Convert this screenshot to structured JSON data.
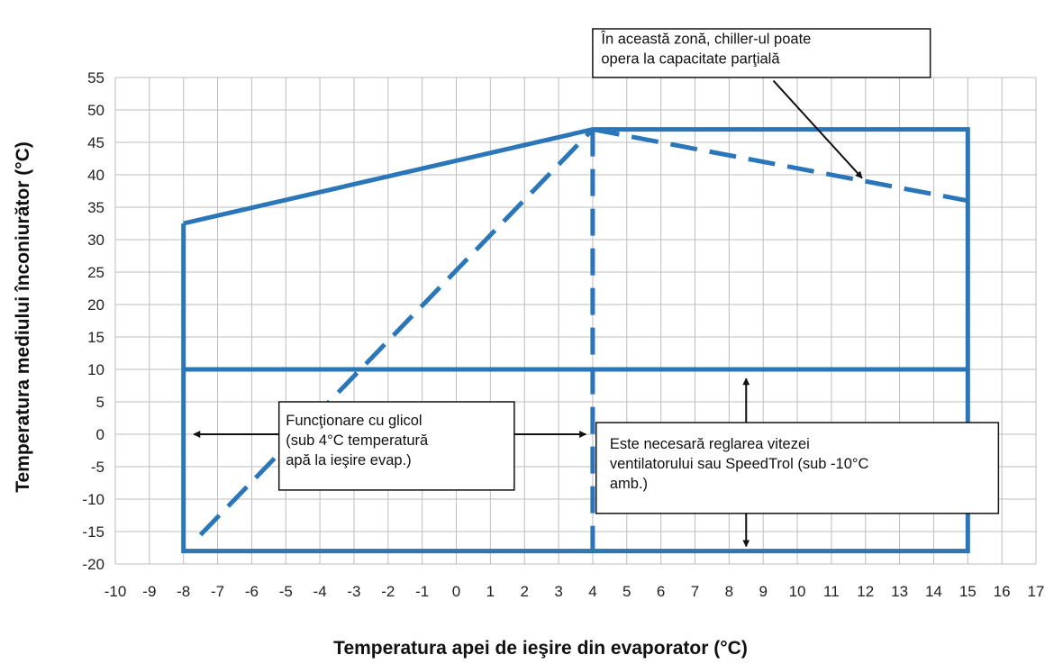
{
  "chart_data": {
    "type": "line",
    "xlabel": "Temperatura apei de ieşire din evaporator (°C)",
    "ylabel": "Temperatura mediului înconiurător (°C)",
    "xlim": [
      -10,
      17
    ],
    "ylim": [
      -20,
      55
    ],
    "x_ticks": [
      -10,
      -9,
      -8,
      -7,
      -6,
      -5,
      -4,
      -3,
      -2,
      -1,
      0,
      1,
      2,
      3,
      4,
      5,
      6,
      7,
      8,
      9,
      10,
      11,
      12,
      13,
      14,
      15,
      16,
      17
    ],
    "y_ticks": [
      55,
      50,
      45,
      40,
      35,
      30,
      25,
      20,
      15,
      10,
      5,
      0,
      -5,
      -10,
      -15,
      -20
    ],
    "grid": true,
    "series": [
      {
        "style": "solid",
        "color": "#2a76b8",
        "x": [
          -8,
          -8,
          15,
          15,
          4,
          -8
        ],
        "y": [
          32.5,
          -18,
          -18,
          47,
          47,
          32.5
        ]
      },
      {
        "style": "solid",
        "color": "#2a76b8",
        "x": [
          -8,
          15
        ],
        "y": [
          10,
          10
        ]
      },
      {
        "style": "dashed",
        "color": "#2a76b8",
        "x": [
          -7.5,
          4
        ],
        "y": [
          -15.5,
          47
        ]
      },
      {
        "style": "dashed",
        "color": "#2a76b8",
        "x": [
          4,
          4
        ],
        "y": [
          47,
          -18
        ]
      },
      {
        "style": "dashed",
        "color": "#2a76b8",
        "x": [
          4,
          15
        ],
        "y": [
          47,
          36
        ]
      }
    ],
    "annotations": [
      {
        "lines": [
          "În această zonă, chiller-ul poate",
          "opera la capacitate parţială"
        ],
        "box": {
          "x": [
            4,
            13.9
          ],
          "y": [
            62.5,
            55
          ]
        },
        "text_anchor": {
          "x": 4.25,
          "y": 60.2
        },
        "arrow": {
          "from": {
            "x": 9.3,
            "y": 54.5
          },
          "to": {
            "x": 11.9,
            "y": 39.5
          }
        }
      },
      {
        "lines": [
          "Funcţionare cu glicol",
          "(sub  4°C  temperatură",
          "apă la ieşire evap.)"
        ],
        "box": {
          "x": [
            -5.2,
            1.7
          ],
          "y": [
            5,
            -8.6
          ]
        },
        "text_anchor": {
          "x": -5,
          "y": 1.4
        },
        "arrows": [
          {
            "from": {
              "x": -5.2,
              "y": 0
            },
            "to": {
              "x": -7.7,
              "y": 0
            }
          },
          {
            "from": {
              "x": 1.7,
              "y": 0
            },
            "to": {
              "x": 3.8,
              "y": 0
            }
          }
        ]
      },
      {
        "lines": [
          "Este  necesară  reglarea  vitezei",
          "ventilatorului sau SpeedTrol (sub -10°C",
          "amb.)"
        ],
        "box": {
          "x": [
            4.1,
            15.9
          ],
          "y": [
            1.8,
            -12.2
          ]
        },
        "text_anchor": {
          "x": 4.5,
          "y": -2.2
        },
        "arrows": [
          {
            "from": {
              "x": 8.5,
              "y": 1.8
            },
            "to": {
              "x": 8.5,
              "y": 8.6
            }
          },
          {
            "from": {
              "x": 8.5,
              "y": -12.2
            },
            "to": {
              "x": 8.5,
              "y": -17.3
            }
          }
        ]
      }
    ]
  }
}
